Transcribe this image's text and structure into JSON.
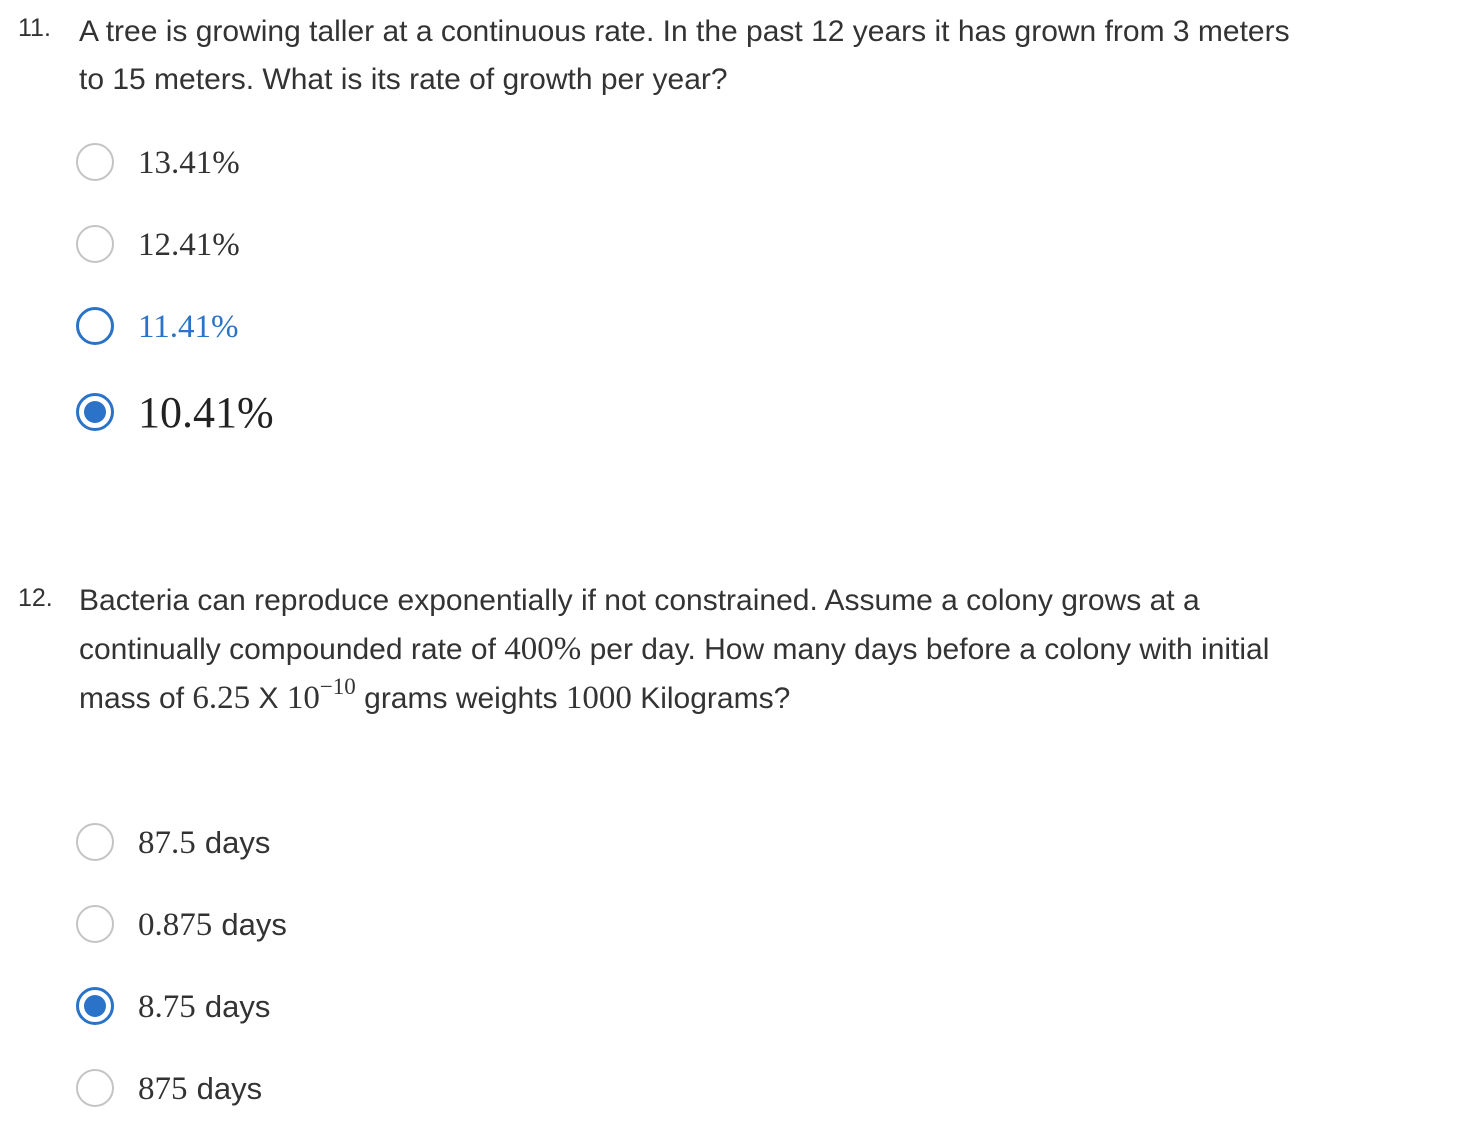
{
  "questions": [
    {
      "number": "11.",
      "text_line1": "A tree is growing taller at a continuous rate. In the past 12 years it has grown from 3 meters",
      "text_line2": "to 15 meters. What is its rate of growth per year?",
      "options": [
        {
          "label": "13.41%",
          "selected": false
        },
        {
          "label": "12.41%",
          "selected": false
        },
        {
          "label": "11.41%",
          "selected": false,
          "hovered": true
        },
        {
          "label": "10.41%",
          "selected": true
        }
      ]
    },
    {
      "number": "12.",
      "text_line1": "Bacteria can reproduce exponentially if not constrained. Assume a colony grows at a",
      "text_line2_a": "continually compounded rate of ",
      "text_line2_rate": "400%",
      "text_line2_b": " per day. How many days before a colony with initial",
      "text_line3_a": "mass of ",
      "text_line3_mass": "6.25",
      "text_line3_x": " X ",
      "text_line3_base": "10",
      "text_line3_exp": "−10",
      "text_line3_b": " grams weights ",
      "text_line3_target": "1000",
      "text_line3_c": " Kilograms?",
      "options": [
        {
          "number": "87.5",
          "unit": "days",
          "selected": false
        },
        {
          "number": "0.875",
          "unit": "days",
          "selected": false
        },
        {
          "number": "8.75",
          "unit": "days",
          "selected": true
        },
        {
          "number": "875",
          "unit": "days",
          "selected": false
        }
      ]
    }
  ],
  "colors": {
    "accent": "#2a73c8",
    "radio_border": "#c4c4c4",
    "text": "#333333"
  }
}
